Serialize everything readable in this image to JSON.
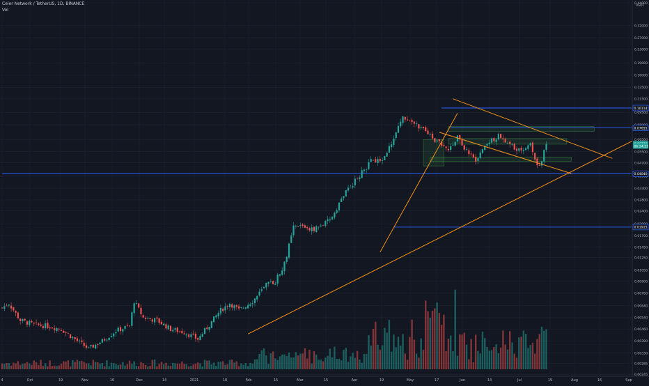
{
  "header": {
    "symbol_line": "Celer Network / TetherUS, 1D, BINANCE",
    "volume_label": "Vol"
  },
  "currency_label": "USDT",
  "colors": {
    "background": "#131722",
    "up": "#26a69a",
    "down": "#ef5350",
    "trendline": "#f7931a",
    "hline": "#2962ff",
    "zone": "#4caf50",
    "grid": "#1e2433",
    "axis_text": "#b2b5be"
  },
  "chart_data": {
    "type": "candlestick",
    "y_scale": "log",
    "ylim": [
      0.0025,
      0.44
    ],
    "y_ticks": [
      "0.44000",
      "0.32000",
      "0.27000",
      "0.23000",
      "0.19000",
      "0.16000",
      "0.13500",
      "0.11500",
      "0.09500",
      "0.08000",
      "0.06500",
      "0.05500",
      "0.04700",
      "0.03900",
      "0.03300",
      "0.02800",
      "0.02400",
      "0.02000",
      "0.01700",
      "0.01450",
      "0.01250",
      "0.01050",
      "0.00900",
      "0.00760",
      "0.00640",
      "0.00540",
      "0.00460",
      "0.00390",
      "0.00330",
      "0.00285",
      "0.00245"
    ],
    "x_ticks": [
      "4",
      "Oct",
      "19",
      "Nov",
      "16",
      "Dec",
      "14",
      "2021",
      "18",
      "Feb",
      "15",
      "Mar",
      "15",
      "Apr",
      "19",
      "May",
      "17",
      "Jun",
      "14",
      "Jul",
      "19",
      "Aug",
      "16",
      "Sep"
    ],
    "price_labels": [
      {
        "value": 0.10114,
        "text": "0.10114",
        "type": "level"
      },
      {
        "value": 0.07655,
        "text": "0.07655",
        "type": "level"
      },
      {
        "value": 0.06129,
        "text": "0.06129",
        "type": "last"
      },
      {
        "value": 0.0595,
        "text": "06:24:33",
        "type": "countdown"
      },
      {
        "value": 0.0404,
        "text": "0.04040",
        "type": "level"
      },
      {
        "value": 0.01915,
        "text": "0.01915",
        "type": "level"
      }
    ],
    "horizontal_levels": [
      {
        "value": 0.10114,
        "x_start_index": 193
      },
      {
        "value": 0.07655,
        "x_start_index": 197
      },
      {
        "value": 0.0404,
        "x_start_index": 0
      },
      {
        "value": 0.01915,
        "x_start_index": 172
      }
    ],
    "trend_lines": [
      {
        "from": [
          108,
          0.0043
        ],
        "to": [
          308,
          0.105
        ]
      },
      {
        "from": [
          166,
          0.0135
        ],
        "to": [
          200,
          0.094
        ]
      },
      {
        "from": [
          198,
          0.115
        ],
        "to": [
          268,
          0.05
        ]
      },
      {
        "from": [
          192,
          0.072
        ],
        "to": [
          250,
          0.0405
        ]
      }
    ],
    "zones": [
      {
        "x": [
          185,
          194
        ],
        "y": [
          0.045,
          0.065
        ]
      },
      {
        "x": [
          196,
          260
        ],
        "y": [
          0.073,
          0.078
        ]
      },
      {
        "x": [
          196,
          248
        ],
        "y": [
          0.061,
          0.066
        ]
      },
      {
        "x": [
          188,
          250
        ],
        "y": [
          0.048,
          0.051
        ]
      }
    ],
    "last_close": 0.06129
  }
}
